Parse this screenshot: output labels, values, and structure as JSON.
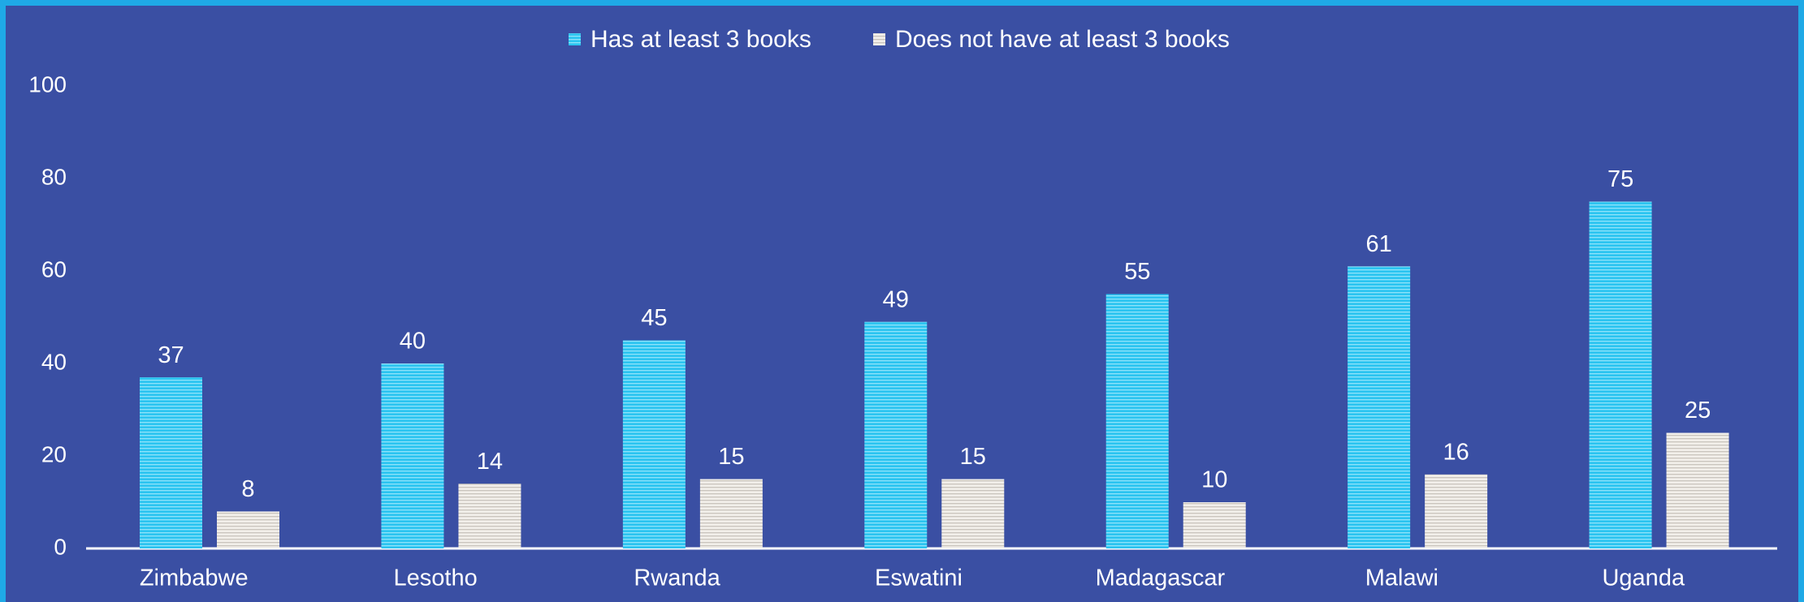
{
  "chart_data": {
    "type": "bar",
    "categories": [
      "Zimbabwe",
      "Lesotho",
      "Rwanda",
      "Eswatini",
      "Madagascar",
      "Malawi",
      "Uganda"
    ],
    "series": [
      {
        "name": "Has at least 3 books",
        "color": "#2bc4f0",
        "values": [
          37,
          40,
          45,
          49,
          55,
          61,
          75
        ]
      },
      {
        "name": "Does not have at least 3 books",
        "color": "#ece8e2",
        "values": [
          8,
          14,
          15,
          15,
          10,
          16,
          25
        ]
      }
    ],
    "ylim": [
      0,
      100
    ],
    "yticks": [
      0,
      20,
      40,
      60,
      80,
      100
    ],
    "grid": false,
    "legend": "top"
  }
}
